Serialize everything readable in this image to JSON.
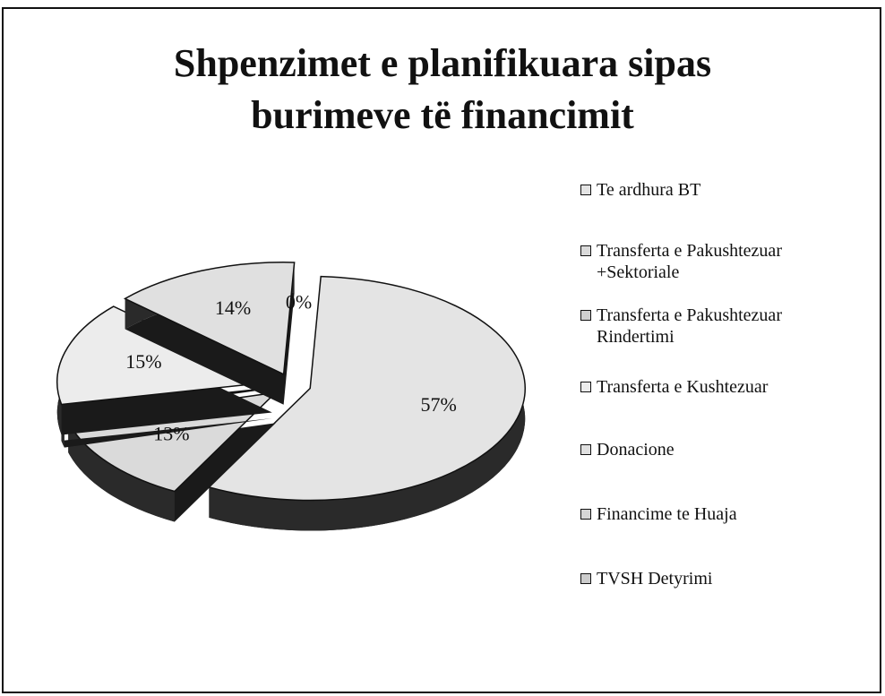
{
  "chart_data": {
    "type": "pie",
    "title": "Shpenzimet e planifikuara sipas burimeve të financimit",
    "categories": [
      "Te ardhura BT",
      "Transferta e Pakushtezuar +Sektoriale",
      "Transferta e Pakushtezuar Rindertimi",
      "Transferta e Kushtezuar",
      "Donacione",
      "Financime te Huaja",
      "TVSH Detyrimi"
    ],
    "values": [
      57,
      13,
      1,
      15,
      14,
      0,
      0
    ],
    "value_labels": [
      "57%",
      "13%",
      null,
      "15%",
      "14%",
      "0%",
      null
    ],
    "colors": [
      "#e4e4e4",
      "#dadada",
      "#cfcfcf",
      "#ececec",
      "#e0e0e0",
      "#d6d6d6",
      "#cccccc"
    ],
    "legend": "right"
  }
}
